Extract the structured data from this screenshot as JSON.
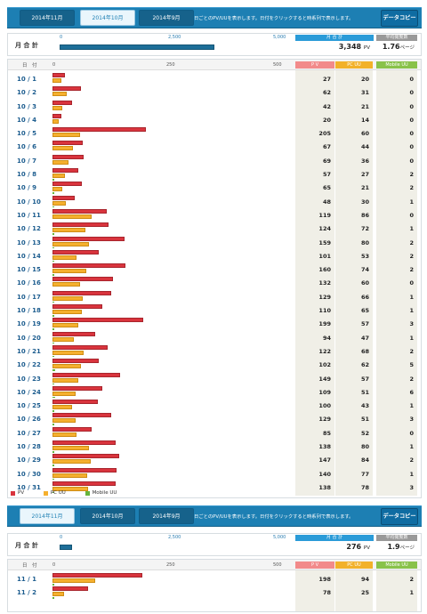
{
  "toolbar1": {
    "tabs": [
      "2014年11月",
      "2014年10月",
      "2014年9月"
    ],
    "active": 1,
    "note": "日ごとのPV/UUを表示します。日付をクリックすると時系列で表示します。",
    "export_label": "データコピー"
  },
  "summary1": {
    "label": "月 合 計",
    "ticks": [
      "0",
      "2,500",
      "5,000"
    ],
    "pv_header": "月 合 計",
    "avg_header": "平均閲覧数",
    "pv_value": "3,348",
    "pv_unit": "PV",
    "avg_value": "1.76",
    "avg_unit": "ページ"
  },
  "table1": {
    "date_header": "日　付",
    "axis": [
      "0",
      "250",
      "500"
    ],
    "col_pv": "P V",
    "col_pc": "PC UU",
    "col_mobile": "Mobile UU",
    "rows": [
      {
        "date": "10 / 1",
        "pv": 27,
        "pc": 20,
        "mb": 0
      },
      {
        "date": "10 / 2",
        "pv": 62,
        "pc": 31,
        "mb": 0
      },
      {
        "date": "10 / 3",
        "pv": 42,
        "pc": 21,
        "mb": 0
      },
      {
        "date": "10 / 4",
        "pv": 20,
        "pc": 14,
        "mb": 0
      },
      {
        "date": "10 / 5",
        "pv": 205,
        "pc": 60,
        "mb": 0
      },
      {
        "date": "10 / 6",
        "pv": 67,
        "pc": 44,
        "mb": 0
      },
      {
        "date": "10 / 7",
        "pv": 69,
        "pc": 36,
        "mb": 0
      },
      {
        "date": "10 / 8",
        "pv": 57,
        "pc": 27,
        "mb": 2
      },
      {
        "date": "10 / 9",
        "pv": 65,
        "pc": 21,
        "mb": 2
      },
      {
        "date": "10 / 10",
        "pv": 48,
        "pc": 30,
        "mb": 1
      },
      {
        "date": "10 / 11",
        "pv": 119,
        "pc": 86,
        "mb": 0
      },
      {
        "date": "10 / 12",
        "pv": 124,
        "pc": 72,
        "mb": 1
      },
      {
        "date": "10 / 13",
        "pv": 159,
        "pc": 80,
        "mb": 2
      },
      {
        "date": "10 / 14",
        "pv": 101,
        "pc": 53,
        "mb": 2
      },
      {
        "date": "10 / 15",
        "pv": 160,
        "pc": 74,
        "mb": 2
      },
      {
        "date": "10 / 16",
        "pv": 132,
        "pc": 60,
        "mb": 0
      },
      {
        "date": "10 / 17",
        "pv": 129,
        "pc": 66,
        "mb": 1
      },
      {
        "date": "10 / 18",
        "pv": 110,
        "pc": 65,
        "mb": 1
      },
      {
        "date": "10 / 19",
        "pv": 199,
        "pc": 57,
        "mb": 3
      },
      {
        "date": "10 / 20",
        "pv": 94,
        "pc": 47,
        "mb": 1
      },
      {
        "date": "10 / 21",
        "pv": 122,
        "pc": 68,
        "mb": 2
      },
      {
        "date": "10 / 22",
        "pv": 102,
        "pc": 62,
        "mb": 5
      },
      {
        "date": "10 / 23",
        "pv": 149,
        "pc": 57,
        "mb": 2
      },
      {
        "date": "10 / 24",
        "pv": 109,
        "pc": 51,
        "mb": 6
      },
      {
        "date": "10 / 25",
        "pv": 100,
        "pc": 43,
        "mb": 1
      },
      {
        "date": "10 / 26",
        "pv": 129,
        "pc": 51,
        "mb": 3
      },
      {
        "date": "10 / 27",
        "pv": 85,
        "pc": 52,
        "mb": 0
      },
      {
        "date": "10 / 28",
        "pv": 138,
        "pc": 80,
        "mb": 1
      },
      {
        "date": "10 / 29",
        "pv": 147,
        "pc": 84,
        "mb": 2
      },
      {
        "date": "10 / 30",
        "pv": 140,
        "pc": 77,
        "mb": 1
      },
      {
        "date": "10 / 31",
        "pv": 138,
        "pc": 78,
        "mb": 3
      }
    ],
    "legend": [
      "PV",
      "PC UU",
      "Mobile UU"
    ]
  },
  "toolbar2": {
    "tabs": [
      "2014年11月",
      "2014年10月",
      "2014年9月"
    ],
    "active": 0,
    "note": "日ごとのPV/UUを表示します。日付をクリックすると時系列で表示します。",
    "export_label": "データコピー"
  },
  "summary2": {
    "label": "月 合 計",
    "ticks": [
      "0",
      "2,500",
      "5,000"
    ],
    "pv_header": "月 合 計",
    "avg_header": "平均閲覧数",
    "pv_value": "276",
    "pv_unit": "PV",
    "avg_value": "1.9",
    "avg_unit": "ページ"
  },
  "table2": {
    "date_header": "日　付",
    "axis": [
      "0",
      "250",
      "500"
    ],
    "col_pv": "P V",
    "col_pc": "PC UU",
    "col_mobile": "Mobile UU",
    "rows": [
      {
        "date": "11 / 1",
        "pv": 198,
        "pc": 94,
        "mb": 2
      },
      {
        "date": "11 / 2",
        "pv": 78,
        "pc": 25,
        "mb": 1
      }
    ]
  },
  "colors": {
    "toolbar": "#1d7fb3",
    "pv": "#d9343d",
    "pc": "#f5b02e",
    "mobile": "#64b43c"
  }
}
